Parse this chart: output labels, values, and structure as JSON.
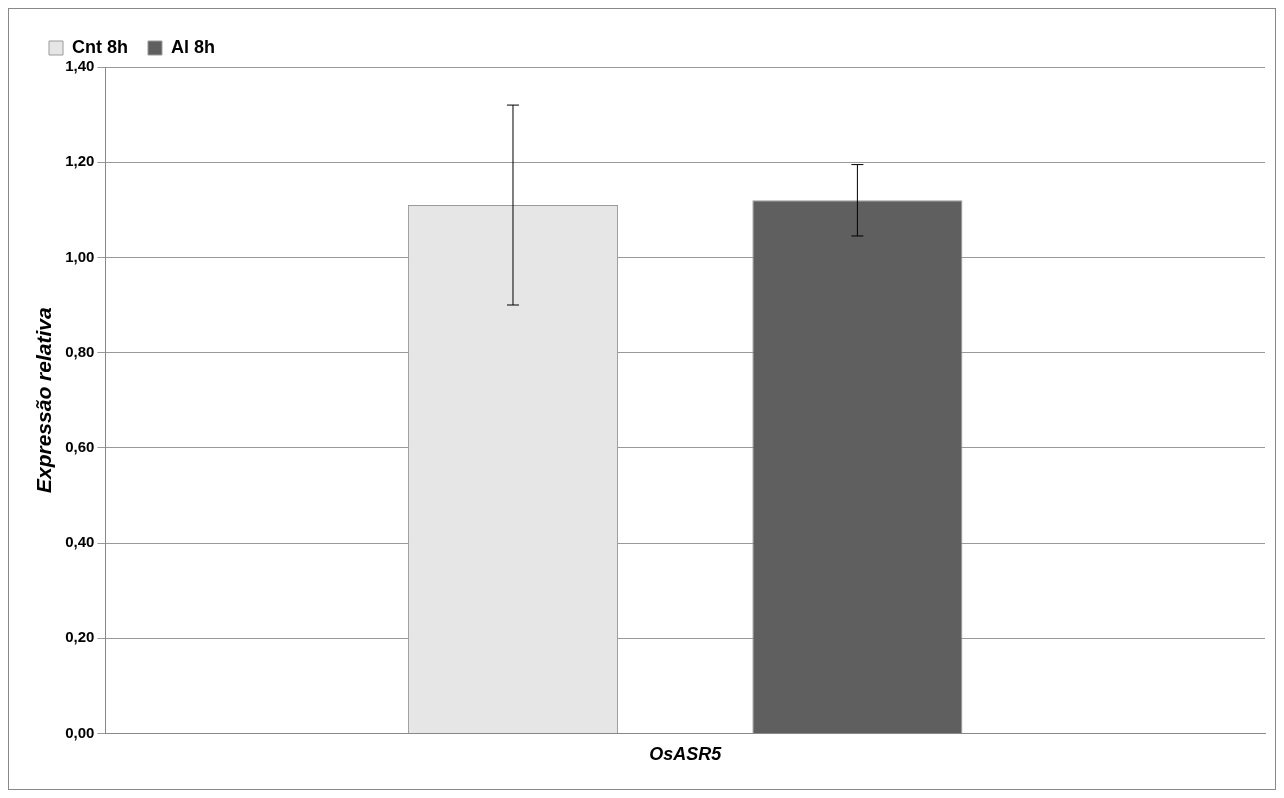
{
  "chart_data": {
    "type": "bar",
    "ylabel": "Expressão relativa",
    "categories": [
      "OsASR5"
    ],
    "series": [
      {
        "name": "Cnt 8h",
        "color": "#e6e6e6",
        "values": [
          1.11
        ],
        "errors": [
          0.21
        ]
      },
      {
        "name": "Al 8h",
        "color": "#5f5f5f",
        "values": [
          1.12
        ],
        "errors": [
          0.075
        ]
      }
    ],
    "ylim": [
      0,
      1.4
    ],
    "yticks": [
      {
        "value": 0,
        "label": "0,00"
      },
      {
        "value": 0.2,
        "label": "0,20"
      },
      {
        "value": 0.4,
        "label": "0,40"
      },
      {
        "value": 0.6,
        "label": "0,60"
      },
      {
        "value": 0.8,
        "label": "0,80"
      },
      {
        "value": 1,
        "label": "1,00"
      },
      {
        "value": 1.2,
        "label": "1,20"
      },
      {
        "value": 1.4,
        "label": "1,40"
      }
    ],
    "grid": "y",
    "legend": "top left"
  }
}
